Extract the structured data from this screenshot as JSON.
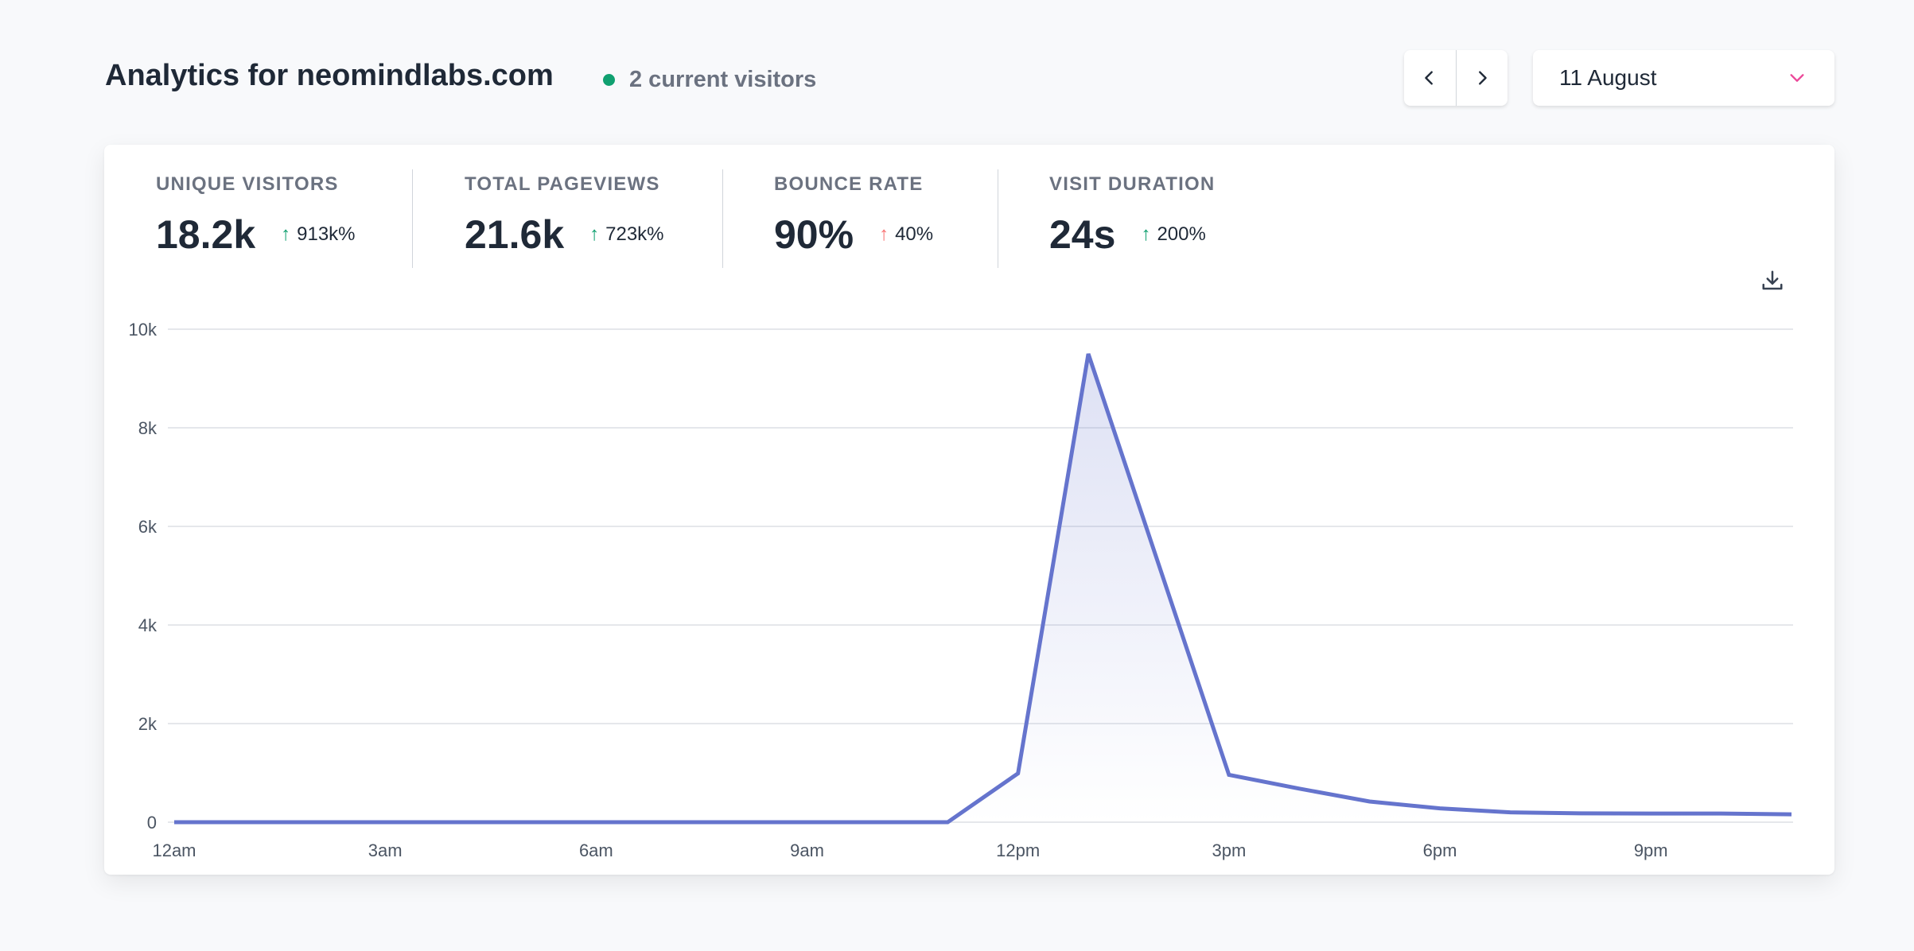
{
  "header": {
    "title": "Analytics for neomindlabs.com",
    "current_visitors": "2 current visitors",
    "live_color": "#10a070"
  },
  "date_picker": {
    "prev_icon": "chevron-left-icon",
    "next_icon": "chevron-right-icon",
    "selected": "11 August",
    "chevron_color": "#ec4899"
  },
  "stats": [
    {
      "label": "UNIQUE VISITORS",
      "value": "18.2k",
      "change": "913k%",
      "direction": "up",
      "change_color": "#10a070"
    },
    {
      "label": "TOTAL PAGEVIEWS",
      "value": "21.6k",
      "change": "723k%",
      "direction": "up",
      "change_color": "#10a070"
    },
    {
      "label": "BOUNCE RATE",
      "value": "90%",
      "change": "40%",
      "direction": "up",
      "change_color": "#f87171"
    },
    {
      "label": "VISIT DURATION",
      "value": "24s",
      "change": "200%",
      "direction": "up",
      "change_color": "#10a070"
    }
  ],
  "download_icon": "download-icon",
  "chart_data": {
    "type": "line",
    "x": [
      "12am",
      "1am",
      "2am",
      "3am",
      "4am",
      "5am",
      "6am",
      "7am",
      "8am",
      "9am",
      "10am",
      "11am",
      "12pm",
      "1pm",
      "2pm",
      "3pm",
      "4pm",
      "5pm",
      "6pm",
      "7pm",
      "8pm",
      "9pm",
      "10pm",
      "11pm"
    ],
    "series": [
      {
        "values": [
          0,
          0,
          0,
          0,
          0,
          0,
          0,
          0,
          0,
          0,
          0,
          0,
          990,
          9500,
          5230,
          960,
          680,
          420,
          280,
          200,
          180,
          175,
          175,
          160
        ]
      }
    ],
    "x_tick_labels": [
      "12am",
      "3am",
      "6am",
      "9am",
      "12pm",
      "3pm",
      "6pm",
      "9pm"
    ],
    "y_tick_labels": [
      "0",
      "2k",
      "4k",
      "6k",
      "8k",
      "10k"
    ],
    "ylim": [
      0,
      10000
    ],
    "grid": true,
    "line_color": "#6574cd",
    "fill": "gradient"
  }
}
